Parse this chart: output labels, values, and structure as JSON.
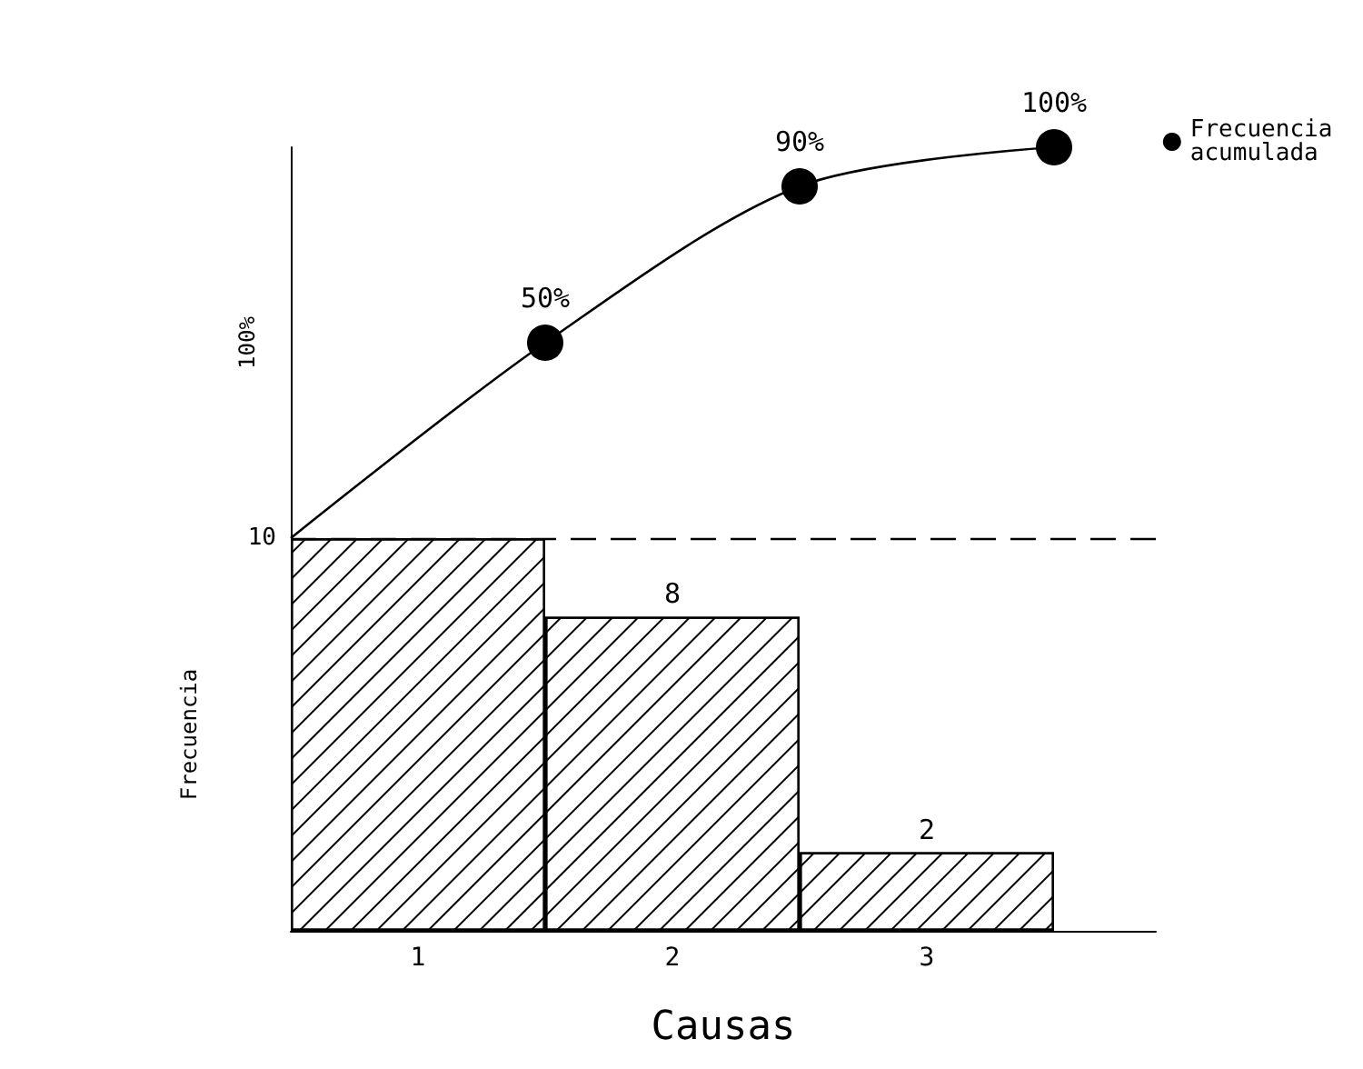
{
  "chart_data": [
    {
      "type": "line",
      "ylabel": "100%",
      "xlim": [
        0.5,
        3.9
      ],
      "ylim": [
        0,
        100
      ],
      "legend": "right",
      "series": [
        {
          "name": "Frecuencia acumulada",
          "color": "#000000",
          "marker": "circle",
          "x": [
            0.5,
            1.5,
            2.5,
            3.5
          ],
          "values": [
            0,
            50,
            90,
            100
          ],
          "value_labels": [
            null,
            "50%",
            "90%",
            "100%"
          ]
        }
      ]
    },
    {
      "type": "bar",
      "xlabel": "Causas",
      "ylabel": "Frecuencia",
      "xlim": [
        0.5,
        3.9
      ],
      "xticks": [
        1,
        2,
        3
      ],
      "ylim": [
        0,
        10
      ],
      "yticks": [
        10
      ],
      "series": [
        {
          "color": "#000000",
          "x": [
            1,
            2,
            3
          ],
          "values": [
            10,
            8,
            2
          ],
          "value_labels": [
            null,
            "8",
            "2"
          ]
        }
      ],
      "ref_lines": [
        {
          "axis": "y",
          "value": 10,
          "line_style": "dashed",
          "color": "#000000"
        }
      ]
    }
  ]
}
